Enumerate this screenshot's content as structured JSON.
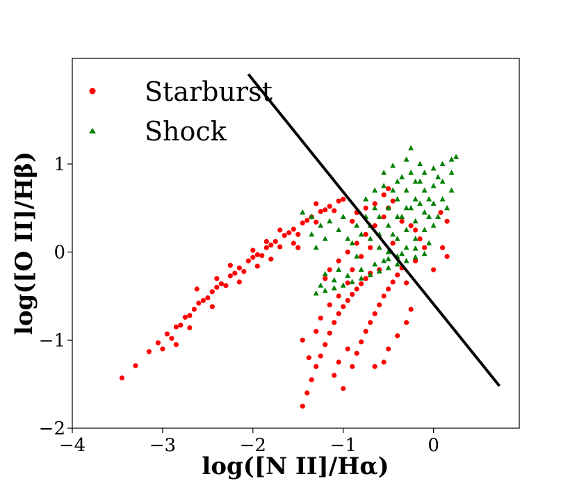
{
  "chart_data": {
    "type": "scatter",
    "xlabel": "log([N II]/Hα)",
    "ylabel": "log([O II]/Hβ)",
    "xlim": [
      -4,
      0.95
    ],
    "ylim": [
      -2,
      2.2
    ],
    "xticks": [
      -4,
      -3,
      -2,
      -1,
      0
    ],
    "yticks": [
      -2,
      -1,
      0,
      1
    ],
    "grid": false,
    "legend": {
      "placement": "top-left",
      "entries": [
        {
          "label": "Starburst",
          "color": "#ff0000",
          "marker": "circle"
        },
        {
          "label": "Shock",
          "color": "#008000",
          "marker": "triangle"
        }
      ]
    },
    "dividing_line": {
      "color": "#000000",
      "points": [
        [
          -2.05,
          2.02
        ],
        [
          0.73,
          -1.52
        ]
      ]
    },
    "series": [
      {
        "name": "Starburst",
        "color": "#ff0000",
        "marker": "circle",
        "points": [
          [
            -3.45,
            -1.43
          ],
          [
            -3.3,
            -1.29
          ],
          [
            -3.15,
            -1.13
          ],
          [
            -3.05,
            -1.03
          ],
          [
            -2.95,
            -0.93
          ],
          [
            -2.85,
            -0.85
          ],
          [
            -2.75,
            -0.74
          ],
          [
            -2.65,
            -0.65
          ],
          [
            -2.55,
            -0.55
          ],
          [
            -2.45,
            -0.45
          ],
          [
            -2.35,
            -0.36
          ],
          [
            -2.25,
            -0.27
          ],
          [
            -2.15,
            -0.18
          ],
          [
            -2.05,
            -0.1
          ],
          [
            -1.95,
            -0.03
          ],
          [
            -1.85,
            0.05
          ],
          [
            -1.75,
            0.12
          ],
          [
            -1.65,
            0.19
          ],
          [
            -1.55,
            0.26
          ],
          [
            -1.45,
            0.33
          ],
          [
            -1.35,
            0.4
          ],
          [
            -1.25,
            0.46
          ],
          [
            -1.15,
            0.52
          ],
          [
            -1.05,
            0.58
          ],
          [
            -2.9,
            -0.98
          ],
          [
            -2.8,
            -0.83
          ],
          [
            -2.7,
            -0.72
          ],
          [
            -2.6,
            -0.58
          ],
          [
            -2.5,
            -0.52
          ],
          [
            -2.4,
            -0.4
          ],
          [
            -2.3,
            -0.38
          ],
          [
            -2.2,
            -0.24
          ],
          [
            -2.1,
            -0.22
          ],
          [
            -2.0,
            -0.06
          ],
          [
            -1.9,
            -0.04
          ],
          [
            -1.8,
            0.08
          ],
          [
            -1.7,
            0.06
          ],
          [
            -1.6,
            0.22
          ],
          [
            -1.5,
            0.2
          ],
          [
            -1.4,
            0.36
          ],
          [
            -1.3,
            0.34
          ],
          [
            -1.2,
            0.48
          ],
          [
            -1.1,
            0.47
          ],
          [
            -1.0,
            0.6
          ],
          [
            -2.62,
            -0.42
          ],
          [
            -2.4,
            -0.3
          ],
          [
            -2.25,
            -0.15
          ],
          [
            -2.0,
            0.02
          ],
          [
            -1.85,
            0.12
          ],
          [
            -1.7,
            0.25
          ],
          [
            -1.55,
            0.1
          ],
          [
            -1.95,
            -0.16
          ],
          [
            -2.15,
            -0.34
          ],
          [
            -2.45,
            -0.62
          ],
          [
            -2.7,
            -0.86
          ],
          [
            -2.85,
            -1.05
          ],
          [
            -3.0,
            -1.1
          ],
          [
            -1.8,
            -0.08
          ],
          [
            -1.5,
            0.05
          ],
          [
            -1.45,
            -1.75
          ],
          [
            -1.4,
            -1.6
          ],
          [
            -1.35,
            -1.45
          ],
          [
            -1.3,
            -1.3
          ],
          [
            -1.25,
            -1.18
          ],
          [
            -1.2,
            -1.05
          ],
          [
            -1.15,
            -0.92
          ],
          [
            -1.1,
            -0.8
          ],
          [
            -1.05,
            -0.7
          ],
          [
            -1.0,
            -0.62
          ],
          [
            -0.95,
            -0.55
          ],
          [
            -0.9,
            -0.48
          ],
          [
            -0.85,
            -0.42
          ],
          [
            -0.8,
            -0.36
          ],
          [
            -0.75,
            -0.3
          ],
          [
            -0.7,
            -0.24
          ],
          [
            -1.0,
            -1.55
          ],
          [
            -0.9,
            -1.3
          ],
          [
            -0.85,
            -1.15
          ],
          [
            -0.8,
            -1.02
          ],
          [
            -0.75,
            -0.9
          ],
          [
            -0.7,
            -0.8
          ],
          [
            -0.65,
            -0.7
          ],
          [
            -0.6,
            -0.6
          ],
          [
            -0.55,
            -0.5
          ],
          [
            -0.5,
            -0.42
          ],
          [
            -0.45,
            -0.34
          ],
          [
            -0.4,
            -0.26
          ],
          [
            -0.35,
            -0.18
          ],
          [
            -0.65,
            -1.3
          ],
          [
            -0.55,
            -1.25
          ],
          [
            -0.5,
            -1.1
          ],
          [
            -0.4,
            -0.95
          ],
          [
            -0.3,
            -0.8
          ],
          [
            -0.25,
            -0.65
          ],
          [
            -1.2,
            -0.3
          ],
          [
            -1.15,
            -0.2
          ],
          [
            -1.05,
            -0.1
          ],
          [
            -0.95,
            0.0
          ],
          [
            -0.85,
            0.1
          ],
          [
            -0.75,
            0.2
          ],
          [
            -0.65,
            0.3
          ],
          [
            -0.55,
            0.4
          ],
          [
            -0.5,
            0.5
          ],
          [
            -0.45,
            0.58
          ],
          [
            -0.5,
            0.72
          ],
          [
            -0.55,
            0.65
          ],
          [
            -0.65,
            0.55
          ],
          [
            -0.75,
            0.5
          ],
          [
            -0.85,
            0.45
          ],
          [
            -1.05,
            -0.5
          ],
          [
            -0.95,
            -0.35
          ],
          [
            -0.9,
            -0.2
          ],
          [
            -0.8,
            -0.05
          ],
          [
            -0.7,
            0.05
          ],
          [
            -1.3,
            -0.9
          ],
          [
            -1.25,
            -0.75
          ],
          [
            -1.15,
            -0.6
          ],
          [
            -1.1,
            -1.4
          ],
          [
            -1.05,
            -1.25
          ],
          [
            -0.95,
            -1.1
          ],
          [
            -0.15,
            0.15
          ],
          [
            -0.1,
            0.05
          ],
          [
            -0.2,
            0.25
          ],
          [
            0.0,
            -0.2
          ],
          [
            0.15,
            0.35
          ],
          [
            0.1,
            0.05
          ],
          [
            0.08,
            0.45
          ],
          [
            0.15,
            -0.05
          ],
          [
            -0.35,
            0.35
          ],
          [
            -0.25,
            0.3
          ],
          [
            -1.45,
            -1.0
          ],
          [
            -1.38,
            -1.2
          ],
          [
            -0.6,
            -0.2
          ],
          [
            -0.3,
            -0.35
          ],
          [
            -0.2,
            -0.1
          ],
          [
            -0.45,
            0.1
          ],
          [
            -0.9,
            0.35
          ],
          [
            -1.3,
            0.55
          ]
        ]
      },
      {
        "name": "Shock",
        "color": "#008000",
        "marker": "triangle",
        "points": [
          [
            -1.3,
            -0.47
          ],
          [
            -1.2,
            -0.44
          ],
          [
            -1.1,
            -0.41
          ],
          [
            -1.0,
            -0.38
          ],
          [
            -0.9,
            -0.34
          ],
          [
            -0.8,
            -0.3
          ],
          [
            -0.7,
            -0.26
          ],
          [
            -0.6,
            -0.22
          ],
          [
            -0.5,
            -0.18
          ],
          [
            -0.4,
            -0.14
          ],
          [
            -0.3,
            -0.1
          ],
          [
            -0.2,
            -0.06
          ],
          [
            -0.1,
            -0.02
          ],
          [
            -1.25,
            -0.38
          ],
          [
            -1.1,
            -0.32
          ],
          [
            -0.95,
            -0.27
          ],
          [
            -0.8,
            -0.2
          ],
          [
            -0.65,
            -0.14
          ],
          [
            -0.5,
            -0.08
          ],
          [
            -0.35,
            -0.02
          ],
          [
            -0.2,
            0.04
          ],
          [
            -0.05,
            0.1
          ],
          [
            -0.9,
            0.1
          ],
          [
            -0.8,
            0.2
          ],
          [
            -0.7,
            0.3
          ],
          [
            -0.6,
            0.4
          ],
          [
            -0.5,
            0.5
          ],
          [
            -0.4,
            0.6
          ],
          [
            -0.3,
            0.7
          ],
          [
            -0.2,
            0.8
          ],
          [
            -0.1,
            0.9
          ],
          [
            0.0,
            0.95
          ],
          [
            0.1,
            1.0
          ],
          [
            0.2,
            1.05
          ],
          [
            0.25,
            1.08
          ],
          [
            -0.6,
            0.2
          ],
          [
            -0.5,
            0.3
          ],
          [
            -0.4,
            0.4
          ],
          [
            -0.3,
            0.5
          ],
          [
            -0.2,
            0.6
          ],
          [
            -0.1,
            0.7
          ],
          [
            0.0,
            0.75
          ],
          [
            0.1,
            0.8
          ],
          [
            0.2,
            0.9
          ],
          [
            -0.4,
            0.15
          ],
          [
            -0.3,
            0.25
          ],
          [
            -0.2,
            0.35
          ],
          [
            -0.1,
            0.45
          ],
          [
            0.0,
            0.55
          ],
          [
            0.1,
            0.6
          ],
          [
            -0.25,
            1.18
          ],
          [
            -0.3,
            1.05
          ],
          [
            -0.45,
            0.98
          ],
          [
            -0.55,
            0.9
          ],
          [
            -0.4,
            0.8
          ],
          [
            -0.15,
            1.0
          ],
          [
            0.05,
            0.85
          ],
          [
            0.2,
            0.7
          ],
          [
            -1.45,
            0.45
          ],
          [
            -1.35,
            0.4
          ],
          [
            -1.25,
            0.3
          ],
          [
            -1.2,
            0.15
          ],
          [
            -1.3,
            0.05
          ],
          [
            -1.35,
            0.2
          ],
          [
            -1.15,
            0.35
          ],
          [
            -1.0,
            0.4
          ],
          [
            -1.05,
            0.25
          ],
          [
            -0.95,
            0.15
          ],
          [
            -0.85,
            0.3
          ],
          [
            -0.75,
            0.4
          ],
          [
            -0.65,
            0.5
          ],
          [
            -0.7,
            0.15
          ],
          [
            -0.6,
            0.05
          ],
          [
            -0.5,
            0.0
          ],
          [
            -0.4,
            -0.05
          ],
          [
            -0.3,
            0.05
          ],
          [
            -0.2,
            0.15
          ],
          [
            -0.1,
            0.25
          ],
          [
            0.0,
            0.3
          ],
          [
            -0.75,
            0.6
          ],
          [
            -0.65,
            0.7
          ],
          [
            -0.55,
            0.75
          ],
          [
            -0.45,
            0.7
          ],
          [
            -0.35,
            0.85
          ],
          [
            -0.25,
            0.9
          ],
          [
            -0.15,
            0.8
          ],
          [
            -0.05,
            0.6
          ],
          [
            0.05,
            0.4
          ],
          [
            0.15,
            0.5
          ],
          [
            -0.85,
            -0.05
          ],
          [
            -1.05,
            -0.2
          ],
          [
            -1.2,
            -0.25
          ],
          [
            -0.55,
            -0.1
          ],
          [
            -0.45,
            0.2
          ],
          [
            -0.35,
            0.4
          ],
          [
            -0.25,
            0.5
          ],
          [
            -0.15,
            0.55
          ],
          [
            -0.05,
            0.4
          ]
        ]
      }
    ]
  }
}
